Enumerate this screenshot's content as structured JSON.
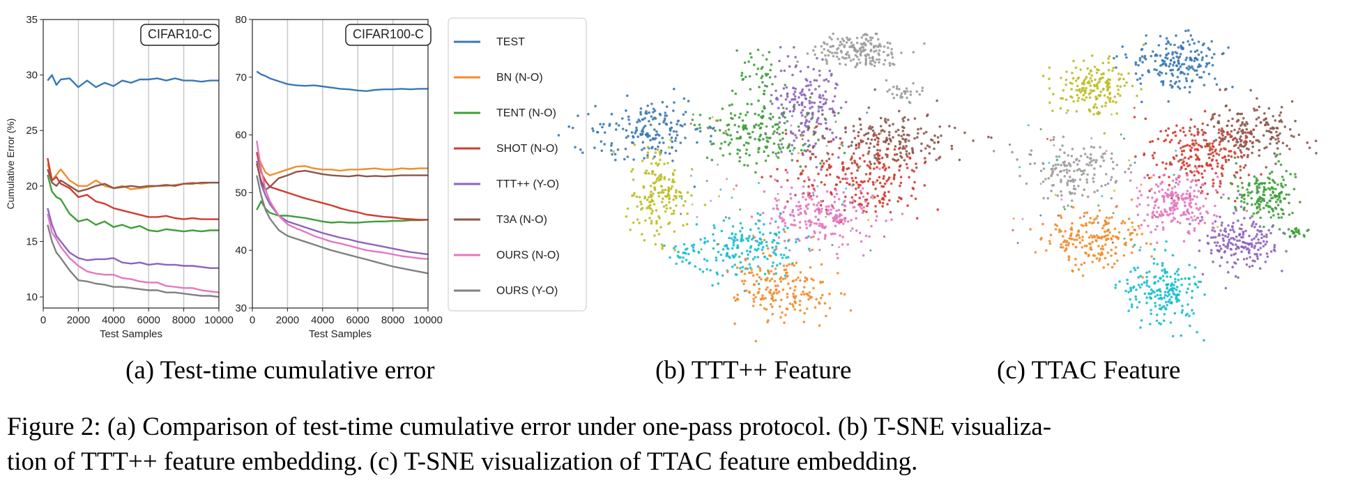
{
  "chart_data": [
    {
      "type": "line",
      "title": "CIFAR10-C",
      "xlabel": "Test Samples",
      "ylabel": "Cumulative Error (%)",
      "xlim": [
        0,
        10000
      ],
      "ylim": [
        9,
        35
      ],
      "xticks": [
        0,
        2000,
        4000,
        6000,
        8000,
        10000
      ],
      "yticks": [
        10,
        15,
        20,
        25,
        30,
        35
      ],
      "grid": "vertical",
      "x": [
        250,
        500,
        750,
        1000,
        1500,
        2000,
        2500,
        3000,
        3500,
        4000,
        4500,
        5000,
        5500,
        6000,
        6500,
        7000,
        7500,
        8000,
        8500,
        9000,
        9500,
        10000
      ],
      "series": [
        {
          "name": "TEST",
          "color": "#3a78b4",
          "values": [
            29.5,
            30.0,
            29.1,
            29.6,
            29.7,
            28.9,
            29.5,
            28.9,
            29.3,
            29.0,
            29.5,
            29.3,
            29.6,
            29.6,
            29.7,
            29.5,
            29.7,
            29.5,
            29.5,
            29.4,
            29.5,
            29.5
          ]
        },
        {
          "name": "BN (N-O)",
          "color": "#f28c2b",
          "values": [
            22.0,
            20.5,
            21.0,
            21.5,
            20.5,
            20.0,
            20.0,
            20.5,
            20.0,
            19.8,
            20.0,
            19.7,
            19.8,
            19.9,
            20.0,
            20.0,
            20.1,
            20.2,
            20.3,
            20.2,
            20.3,
            20.3
          ]
        },
        {
          "name": "TENT (N-O)",
          "color": "#3f9e3a",
          "values": [
            21.0,
            19.5,
            19.0,
            18.8,
            17.5,
            16.8,
            17.0,
            16.5,
            16.8,
            16.3,
            16.5,
            16.2,
            16.4,
            16.0,
            15.9,
            16.1,
            16.0,
            15.9,
            16.0,
            15.9,
            16.0,
            16.0
          ]
        },
        {
          "name": "SHOT (N-O)",
          "color": "#d13b2e",
          "values": [
            22.5,
            20.5,
            20.8,
            20.2,
            19.8,
            19.0,
            19.2,
            18.6,
            18.4,
            18.0,
            17.8,
            17.6,
            17.4,
            17.2,
            17.2,
            17.3,
            17.1,
            17.0,
            17.1,
            17.0,
            17.0,
            17.0
          ]
        },
        {
          "name": "TTT++ (Y-O)",
          "color": "#8d63bc",
          "values": [
            18.0,
            16.5,
            15.5,
            15.0,
            14.0,
            13.5,
            13.3,
            13.4,
            13.4,
            13.5,
            13.1,
            13.0,
            13.1,
            12.9,
            13.0,
            12.9,
            12.9,
            12.8,
            12.8,
            12.7,
            12.6,
            12.6
          ]
        },
        {
          "name": "T3A (N-O)",
          "color": "#8b564c",
          "values": [
            21.5,
            20.3,
            20.0,
            20.5,
            20.0,
            19.5,
            19.7,
            20.0,
            20.2,
            19.8,
            19.9,
            20.0,
            19.9,
            20.0,
            20.0,
            20.1,
            20.0,
            20.2,
            20.2,
            20.3,
            20.3,
            20.3
          ]
        },
        {
          "name": "OURS (N-O)",
          "color": "#e377c2",
          "values": [
            17.5,
            15.8,
            15.2,
            14.5,
            13.5,
            12.8,
            12.3,
            12.1,
            12.0,
            12.0,
            11.7,
            11.6,
            11.4,
            11.3,
            11.3,
            11.0,
            10.9,
            10.8,
            10.8,
            10.6,
            10.5,
            10.4
          ]
        },
        {
          "name": "OURS (Y-O)",
          "color": "#808080",
          "values": [
            16.5,
            15.0,
            14.0,
            13.5,
            12.4,
            11.5,
            11.4,
            11.2,
            11.1,
            10.9,
            10.9,
            10.8,
            10.7,
            10.6,
            10.6,
            10.4,
            10.4,
            10.3,
            10.2,
            10.1,
            10.1,
            10.0
          ]
        }
      ]
    },
    {
      "type": "line",
      "title": "CIFAR100-C",
      "xlabel": "Test Samples",
      "ylabel": "",
      "xlim": [
        0,
        10000
      ],
      "ylim": [
        30,
        80
      ],
      "xticks": [
        0,
        2000,
        4000,
        6000,
        8000,
        10000
      ],
      "yticks": [
        30,
        40,
        50,
        60,
        70,
        80
      ],
      "grid": "vertical",
      "x": [
        250,
        500,
        750,
        1000,
        1500,
        2000,
        2500,
        3000,
        3500,
        4000,
        4500,
        5000,
        5500,
        6000,
        6500,
        7000,
        7500,
        8000,
        8500,
        9000,
        9500,
        10000
      ],
      "series": [
        {
          "name": "TEST",
          "color": "#3a78b4",
          "values": [
            71.0,
            70.5,
            70.2,
            69.8,
            69.3,
            68.8,
            68.6,
            68.5,
            68.6,
            68.4,
            68.2,
            68.0,
            67.9,
            67.7,
            67.6,
            67.8,
            67.9,
            67.9,
            68.0,
            67.9,
            68.0,
            68.0
          ]
        },
        {
          "name": "BN (N-O)",
          "color": "#f28c2b",
          "values": [
            57.0,
            55.0,
            53.5,
            53.0,
            53.5,
            54.0,
            54.5,
            54.6,
            54.2,
            54.0,
            54.0,
            53.8,
            54.0,
            54.0,
            54.1,
            54.2,
            54.0,
            54.0,
            54.2,
            54.1,
            54.2,
            54.2
          ]
        },
        {
          "name": "TENT (N-O)",
          "color": "#3f9e3a",
          "values": [
            47.0,
            48.5,
            47.2,
            46.5,
            46.0,
            46.0,
            45.8,
            45.6,
            45.3,
            45.0,
            44.8,
            44.9,
            44.8,
            44.8,
            44.9,
            45.0,
            45.0,
            45.1,
            45.1,
            45.2,
            45.2,
            45.3
          ]
        },
        {
          "name": "SHOT (N-O)",
          "color": "#d13b2e",
          "values": [
            57.0,
            53.5,
            52.0,
            51.0,
            50.5,
            50.0,
            49.5,
            49.0,
            48.6,
            48.2,
            47.8,
            47.3,
            46.9,
            46.6,
            46.2,
            46.0,
            45.8,
            45.7,
            45.5,
            45.4,
            45.3,
            45.3
          ]
        },
        {
          "name": "TTT++ (Y-O)",
          "color": "#8d63bc",
          "values": [
            55.5,
            51.5,
            49.5,
            48.0,
            46.0,
            45.0,
            44.5,
            44.0,
            43.5,
            43.0,
            42.6,
            42.2,
            41.9,
            41.5,
            41.2,
            40.9,
            40.6,
            40.3,
            40.0,
            39.7,
            39.5,
            39.3
          ]
        },
        {
          "name": "T3A (N-O)",
          "color": "#8b564c",
          "values": [
            55.0,
            52.0,
            50.5,
            51.0,
            52.5,
            53.0,
            53.6,
            53.8,
            53.5,
            53.2,
            53.0,
            52.9,
            52.8,
            53.0,
            52.8,
            52.9,
            52.8,
            52.9,
            53.0,
            53.0,
            53.0,
            53.0
          ]
        },
        {
          "name": "OURS (N-O)",
          "color": "#e377c2",
          "values": [
            59.0,
            54.0,
            50.5,
            48.5,
            46.0,
            44.5,
            43.8,
            43.2,
            42.5,
            42.0,
            41.5,
            41.2,
            40.8,
            40.4,
            40.0,
            39.8,
            39.6,
            39.3,
            39.0,
            38.8,
            38.6,
            38.5
          ]
        },
        {
          "name": "OURS (Y-O)",
          "color": "#808080",
          "values": [
            53.0,
            49.5,
            47.0,
            45.5,
            43.5,
            42.5,
            42.0,
            41.5,
            41.0,
            40.5,
            40.0,
            39.6,
            39.2,
            38.8,
            38.4,
            38.0,
            37.6,
            37.2,
            36.9,
            36.6,
            36.3,
            36.0
          ]
        }
      ]
    },
    {
      "type": "scatter",
      "title": "",
      "clusters": [
        {
          "color": "#9b9b9b",
          "cx": 0.64,
          "cy": -0.85,
          "sx": 0.1,
          "sy": 0.06,
          "n": 170
        },
        {
          "color": "#8d63bc",
          "cx": 0.42,
          "cy": -0.5,
          "sx": 0.07,
          "sy": 0.16,
          "n": 200
        },
        {
          "color": "#3f9e3a",
          "cx": 0.22,
          "cy": -0.35,
          "sx": 0.12,
          "sy": 0.1,
          "n": 180
        },
        {
          "color": "#3f9e3a",
          "cx": 0.21,
          "cy": -0.7,
          "sx": 0.04,
          "sy": 0.08,
          "n": 35
        },
        {
          "color": "#8b564c",
          "cx": 0.78,
          "cy": -0.3,
          "sx": 0.14,
          "sy": 0.08,
          "n": 180
        },
        {
          "color": "#9b9b9b",
          "cx": 0.82,
          "cy": -0.6,
          "sx": 0.04,
          "sy": 0.03,
          "n": 30
        },
        {
          "color": "#3a78b4",
          "cx": -0.25,
          "cy": -0.35,
          "sx": 0.12,
          "sy": 0.1,
          "n": 180
        },
        {
          "color": "#d13b2e",
          "cx": 0.66,
          "cy": -0.05,
          "sx": 0.16,
          "sy": 0.12,
          "n": 230
        },
        {
          "color": "#bcbd22",
          "cx": -0.2,
          "cy": 0.05,
          "sx": 0.06,
          "sy": 0.13,
          "n": 170
        },
        {
          "color": "#e377c2",
          "cx": 0.48,
          "cy": 0.17,
          "sx": 0.12,
          "sy": 0.1,
          "n": 210
        },
        {
          "color": "#17becf",
          "cx": 0.15,
          "cy": 0.38,
          "sx": 0.11,
          "sy": 0.09,
          "n": 180
        },
        {
          "color": "#17becf",
          "cx": -0.1,
          "cy": 0.42,
          "sx": 0.03,
          "sy": 0.03,
          "n": 20
        },
        {
          "color": "#f28c2b",
          "cx": 0.32,
          "cy": 0.62,
          "sx": 0.1,
          "sy": 0.12,
          "n": 190
        }
      ]
    },
    {
      "type": "scatter",
      "title": "",
      "clusters": [
        {
          "color": "#3a78b4",
          "cx": 0.55,
          "cy": -0.78,
          "sx": 0.11,
          "sy": 0.08,
          "n": 200
        },
        {
          "color": "#bcbd22",
          "cx": 0.2,
          "cy": -0.62,
          "sx": 0.08,
          "sy": 0.08,
          "n": 170
        },
        {
          "color": "#8b564c",
          "cx": 0.88,
          "cy": -0.35,
          "sx": 0.1,
          "sy": 0.09,
          "n": 190
        },
        {
          "color": "#d13b2e",
          "cx": 0.66,
          "cy": -0.2,
          "sx": 0.11,
          "sy": 0.11,
          "n": 220
        },
        {
          "color": "#9b9b9b",
          "cx": 0.12,
          "cy": -0.1,
          "sx": 0.1,
          "sy": 0.09,
          "n": 150
        },
        {
          "color": "#e377c2",
          "cx": 0.55,
          "cy": 0.1,
          "sx": 0.08,
          "sy": 0.09,
          "n": 200
        },
        {
          "color": "#3f9e3a",
          "cx": 0.92,
          "cy": 0.05,
          "sx": 0.06,
          "sy": 0.08,
          "n": 170
        },
        {
          "color": "#3f9e3a",
          "cx": 1.05,
          "cy": 0.28,
          "sx": 0.03,
          "sy": 0.02,
          "n": 25
        },
        {
          "color": "#f28c2b",
          "cx": 0.2,
          "cy": 0.32,
          "sx": 0.1,
          "sy": 0.09,
          "n": 200
        },
        {
          "color": "#8d63bc",
          "cx": 0.82,
          "cy": 0.35,
          "sx": 0.08,
          "sy": 0.09,
          "n": 190
        },
        {
          "color": "#17becf",
          "cx": 0.5,
          "cy": 0.64,
          "sx": 0.08,
          "sy": 0.11,
          "n": 200
        }
      ]
    }
  ],
  "legend": [
    {
      "label": "TEST",
      "color": "#3a78b4"
    },
    {
      "label": "BN (N-O)",
      "color": "#f28c2b"
    },
    {
      "label": "TENT (N-O)",
      "color": "#3f9e3a"
    },
    {
      "label": "SHOT (N-O)",
      "color": "#d13b2e"
    },
    {
      "label": "TTT++ (Y-O)",
      "color": "#8d63bc"
    },
    {
      "label": "T3A (N-O)",
      "color": "#8b564c"
    },
    {
      "label": "OURS (N-O)",
      "color": "#e377c2"
    },
    {
      "label": "OURS (Y-O)",
      "color": "#808080"
    }
  ],
  "subcaptions": {
    "a": "(a) Test-time cumulative error",
    "b": "(b) TTT++ Feature",
    "c": "(c) TTAC Feature"
  },
  "caption": {
    "line1": "Figure 2: (a) Comparison of test-time cumulative error under one-pass protocol. (b) T-SNE visualiza-",
    "line2": "tion of TTT++ feature embedding. (c) T-SNE visualization of TTAC feature embedding."
  }
}
